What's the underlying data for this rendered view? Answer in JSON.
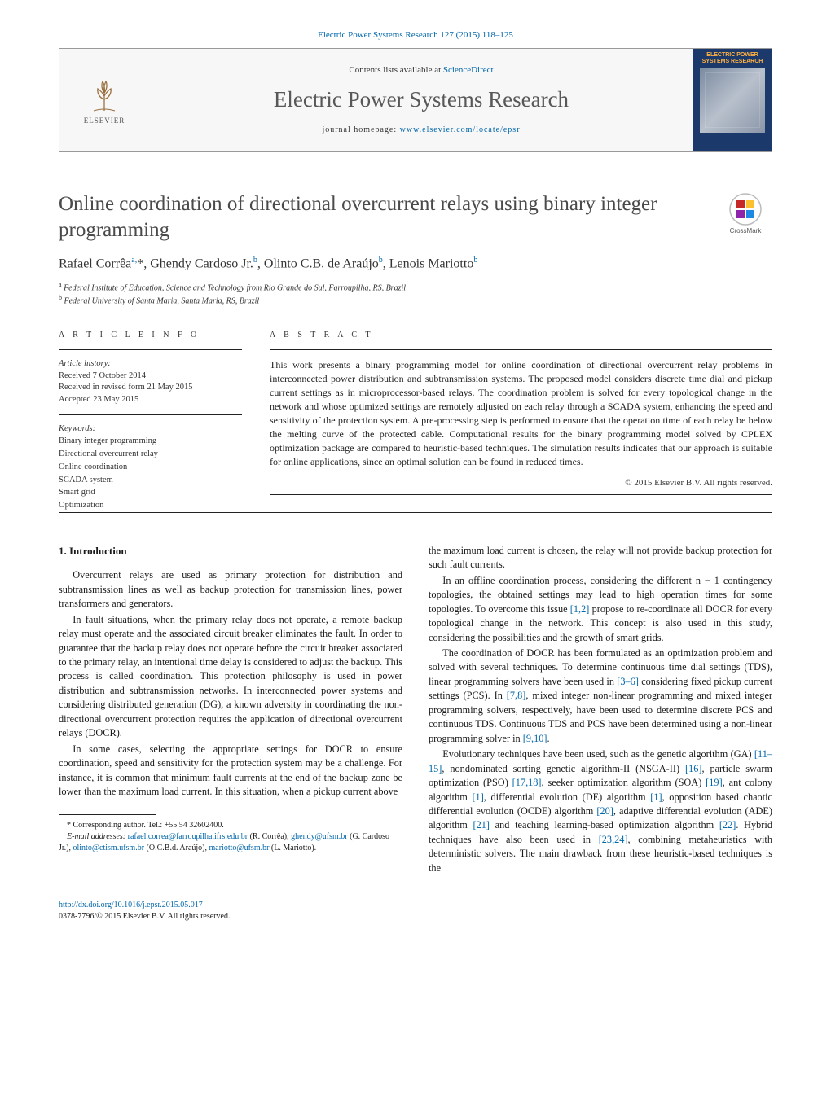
{
  "header": {
    "topCitation": "Electric Power Systems Research 127 (2015) 118–125",
    "contentsPrefix": "Contents lists available at ",
    "contentsLink": "ScienceDirect",
    "journalName": "Electric Power Systems Research",
    "homepagePrefix": "journal homepage: ",
    "homepageUrl": "www.elsevier.com/locate/epsr",
    "publisherName": "ELSEVIER",
    "coverTitle": "ELECTRIC POWER SYSTEMS RESEARCH"
  },
  "crossmark": {
    "label": "CrossMark"
  },
  "title": "Online coordination of directional overcurrent relays using binary integer programming",
  "authors_html": "Rafael Corrêa<sup>a,</sup><span class='star'>*</span>, Ghendy Cardoso Jr.<sup>b</sup>, Olinto C.B. de Araújo<sup>b</sup>, Lenois Mariotto<sup>b</sup>",
  "affiliations": [
    {
      "sup": "a",
      "text": "Federal Institute of Education, Science and Technology from Rio Grande do Sul, Farroupilha, RS, Brazil"
    },
    {
      "sup": "b",
      "text": "Federal University of Santa Maria, Santa Maria, RS, Brazil"
    }
  ],
  "articleInfo": {
    "heading": "A R T I C L E   I N F O",
    "historyLabel": "Article history:",
    "received": "Received 7 October 2014",
    "revised": "Received in revised form 21 May 2015",
    "accepted": "Accepted 23 May 2015",
    "keywordsLabel": "Keywords:",
    "keywords": [
      "Binary integer programming",
      "Directional overcurrent relay",
      "Online coordination",
      "SCADA system",
      "Smart grid",
      "Optimization"
    ]
  },
  "abstract": {
    "heading": "A B S T R A C T",
    "text": "This work presents a binary programming model for online coordination of directional overcurrent relay problems in interconnected power distribution and subtransmission systems. The proposed model considers discrete time dial and pickup current settings as in microprocessor-based relays. The coordination problem is solved for every topological change in the network and whose optimized settings are remotely adjusted on each relay through a SCADA system, enhancing the speed and sensitivity of the protection system. A pre-processing step is performed to ensure that the operation time of each relay be below the melting curve of the protected cable. Computational results for the binary programming model solved by CPLEX optimization package are compared to heuristic-based techniques. The simulation results indicates that our approach is suitable for online applications, since an optimal solution can be found in reduced times.",
    "copyright": "© 2015 Elsevier B.V. All rights reserved."
  },
  "body": {
    "sectionHeading": "1.  Introduction",
    "p1": "Overcurrent relays are used as primary protection for distribution and subtransmission lines as well as backup protection for transmission lines, power transformers and generators.",
    "p2": "In fault situations, when the primary relay does not operate, a remote backup relay must operate and the associated circuit breaker eliminates the fault. In order to guarantee that the backup relay does not operate before the circuit breaker associated to the primary relay, an intentional time delay is considered to adjust the backup. This process is called coordination. This protection philosophy is used in power distribution and subtransmission networks. In interconnected power systems and considering distributed generation (DG), a known adversity in coordinating the non-directional overcurrent protection requires the application of directional overcurrent relays (DOCR).",
    "p3": "In some cases, selecting the appropriate settings for DOCR to ensure coordination, speed and sensitivity for the protection system may be a challenge. For instance, it is common that minimum fault currents at the end of the backup zone be lower than the maximum load current. In this situation, when a pickup current above",
    "p4": "the maximum load current is chosen, the relay will not provide backup protection for such fault currents.",
    "p5_pre": "In an offline coordination process, considering the different n − 1 contingency topologies, the obtained settings may lead to high operation times for some topologies. To overcome this issue ",
    "p5_ref": "[1,2]",
    "p5_post": " propose to re-coordinate all DOCR for every topological change in the network. This concept is also used in this study, considering the possibilities and the growth of smart grids.",
    "p6_a": "The coordination of DOCR has been formulated as an optimization problem and solved with several techniques. To determine continuous time dial settings (TDS), linear programming solvers have been used in ",
    "p6_ref1": "[3–6]",
    "p6_b": " considering fixed pickup current settings (PCS). In ",
    "p6_ref2": "[7,8]",
    "p6_c": ", mixed integer non-linear programming and mixed integer programming solvers, respectively, have been used to determine discrete PCS and continuous TDS. Continuous TDS and PCS have been determined using a non-linear programming solver in ",
    "p6_ref3": "[9,10]",
    "p6_d": ".",
    "p7_a": "Evolutionary techniques have been used, such as the genetic algorithm (GA) ",
    "p7_ref1": "[11–15]",
    "p7_b": ", nondominated sorting genetic algorithm-II (NSGA-II) ",
    "p7_ref2": "[16]",
    "p7_c": ", particle swarm optimization (PSO) ",
    "p7_ref3": "[17,18]",
    "p7_d": ", seeker optimization algorithm (SOA) ",
    "p7_ref4": "[19]",
    "p7_e": ", ant colony algorithm ",
    "p7_ref5": "[1]",
    "p7_f": ", differential evolution (DE) algorithm ",
    "p7_ref6": "[1]",
    "p7_g": ", opposition based chaotic differential evolution (OCDE) algorithm ",
    "p7_ref7": "[20]",
    "p7_h": ", adaptive differential evolution (ADE) algorithm ",
    "p7_ref8": "[21]",
    "p7_i": " and teaching learning-based optimization algorithm ",
    "p7_ref9": "[22]",
    "p7_j": ". Hybrid techniques have also been used in ",
    "p7_ref10": "[23,24]",
    "p7_k": ", combining metaheuristics with deterministic solvers. The main drawback from these heuristic-based techniques is the"
  },
  "footnotes": {
    "corr": "* Corresponding author. Tel.: +55 54 32602400.",
    "emailsLabel": "E-mail addresses:",
    "e1": "rafael.correa@farroupilha.ifrs.edu.br",
    "e1who": " (R. Corrêa), ",
    "e2": "ghendy@ufsm.br",
    "e2who": " (G. Cardoso Jr.), ",
    "e3": "olinto@ctism.ufsm.br",
    "e3who": " (O.C.B.d. Araújo), ",
    "e4": "mariotto@ufsm.br",
    "e4who": " (L. Mariotto)."
  },
  "doi": {
    "url": "http://dx.doi.org/10.1016/j.epsr.2015.05.017",
    "issn": "0378-7796/© 2015 Elsevier B.V. All rights reserved."
  },
  "colors": {
    "link": "#0066aa",
    "headerBg": "#f7f7f7",
    "coverBg": "#1b3a6b",
    "coverTitle": "#ffb040",
    "text": "#1a1a1a",
    "titleGrey": "#4a4a4a",
    "rule": "#222222"
  },
  "typography": {
    "bodyFont": "Times New Roman / Georgia",
    "bodyPt": 12,
    "titlePt": 25,
    "journalNamePt": 27,
    "smallPt": 10
  },
  "layout": {
    "pageWidth": 1020,
    "pageHeight": 1351,
    "columns": 2,
    "columnGap": 32
  }
}
